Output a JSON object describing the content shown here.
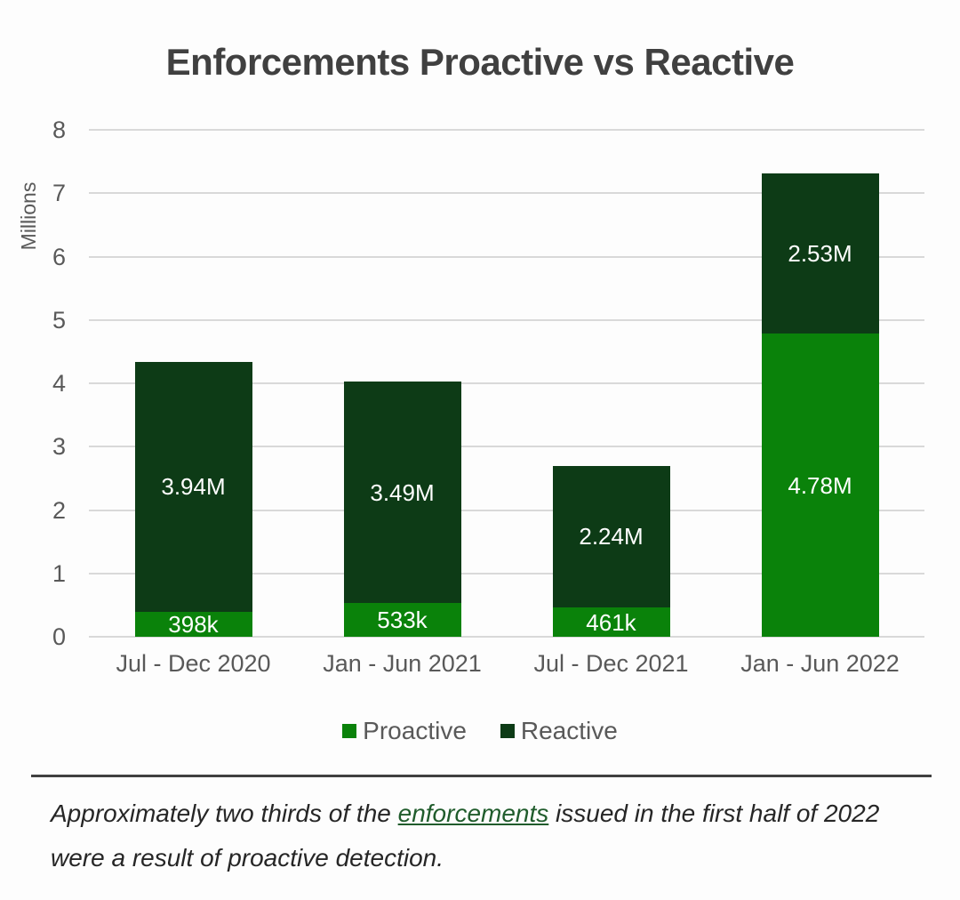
{
  "title": "Enforcements Proactive vs Reactive",
  "chart_data": {
    "type": "bar",
    "stacked": true,
    "title": "Enforcements Proactive vs Reactive",
    "categories": [
      "Jul - Dec 2020",
      "Jan - Jun 2021",
      "Jul - Dec 2021",
      "Jan - Jun 2022"
    ],
    "series": [
      {
        "name": "Proactive",
        "color": "#0a820a",
        "values": [
          0.398,
          0.533,
          0.461,
          4.78
        ],
        "labels": [
          "398k",
          "533k",
          "461k",
          "4.78M"
        ]
      },
      {
        "name": "Reactive",
        "color": "#0d3b16",
        "values": [
          3.94,
          3.49,
          2.24,
          2.53
        ],
        "labels": [
          "3.94M",
          "3.49M",
          "2.24M",
          "2.53M"
        ]
      }
    ],
    "xlabel": "",
    "ylabel": "Millions",
    "ylim": [
      0,
      8
    ],
    "yticks": [
      0,
      1,
      2,
      3,
      4,
      5,
      6,
      7,
      8
    ],
    "grid": true,
    "legend_position": "bottom",
    "label_color": "#ffffff",
    "gridline_color": "#d9d9d9"
  },
  "footer": {
    "before_link": "Approximately two thirds of the ",
    "link_text": "enforcements",
    "after_link": " issued in the first half of 2022 were a result of proactive detection."
  }
}
